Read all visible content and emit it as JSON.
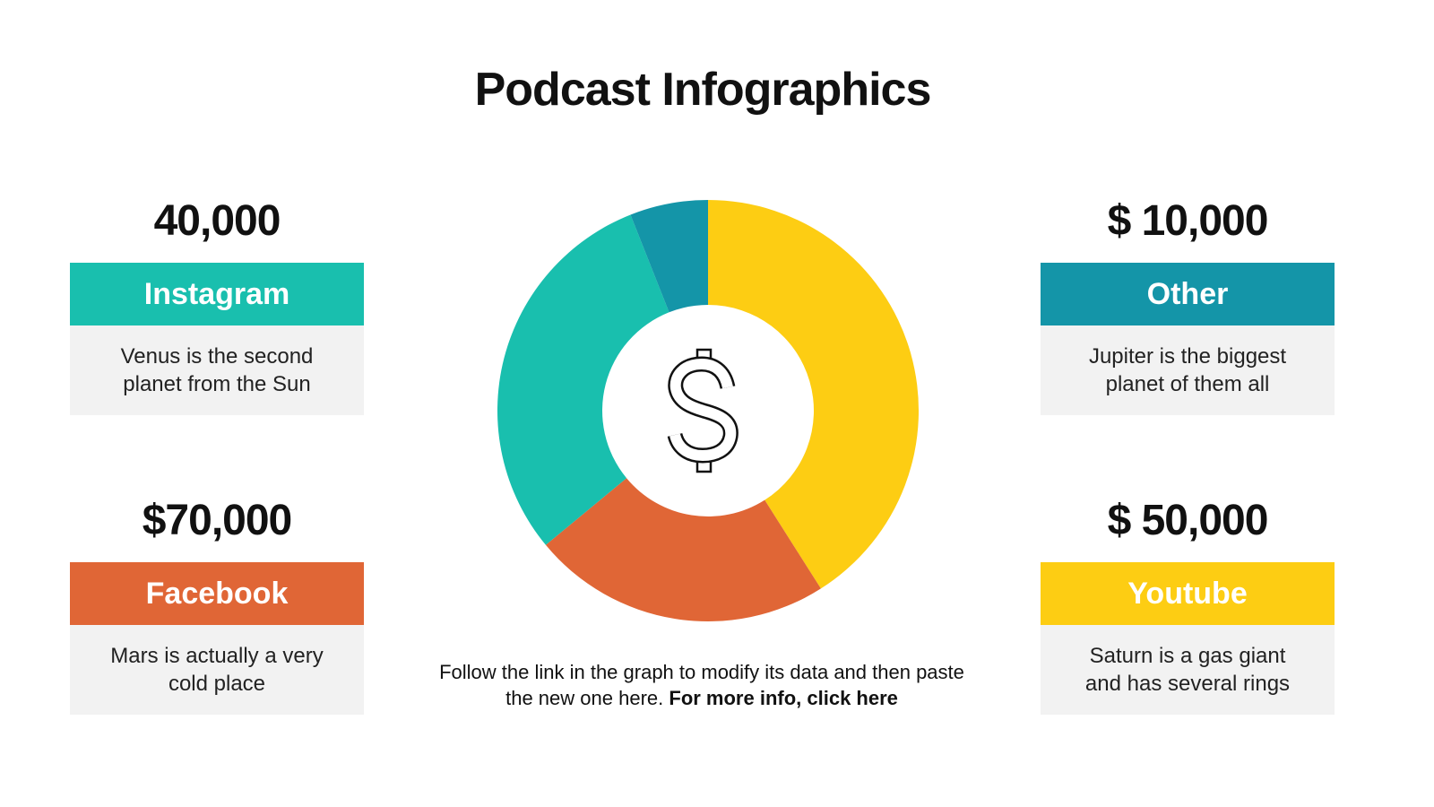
{
  "title": "Podcast Infographics",
  "cards": [
    {
      "value": "40,000",
      "label": "Instagram",
      "description": "Venus is the second planet from the Sun",
      "color": "#19bfae"
    },
    {
      "value": "$70,000",
      "label": "Facebook",
      "description": "Mars is actually a very cold place",
      "color": "#e06636"
    },
    {
      "value": "$ 10,000",
      "label": "Other",
      "description": "Jupiter is the biggest planet of them all",
      "color": "#1495a8"
    },
    {
      "value": "$ 50,000",
      "label": "Youtube",
      "description": "Saturn is a gas giant and has several rings",
      "color": "#fdcd13"
    }
  ],
  "chart_data": {
    "type": "donut",
    "values": [
      41,
      23,
      30,
      6
    ],
    "colors": [
      "#fdcd13",
      "#e06636",
      "#19bfae",
      "#1495a8"
    ]
  },
  "note": {
    "text": "Follow the link in the graph to modify its data and then paste the new one here.",
    "link": "For more info, click here"
  }
}
